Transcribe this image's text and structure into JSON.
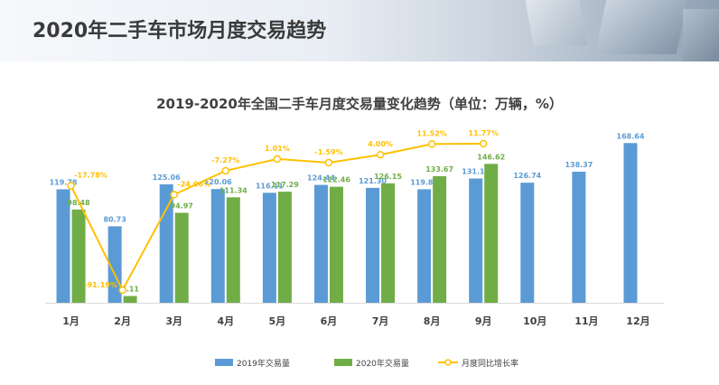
{
  "page": {
    "title": "2020年二手车市场月度交易趋势"
  },
  "colors": {
    "series2019": "#5b9bd5",
    "series2020": "#70ad47",
    "growth": "#ffc000",
    "label2019": "#5b9bd5",
    "label2020": "#70ad47",
    "growthLabel": "#ffc000",
    "axis": "#d9d9d9",
    "tick": "#404040"
  },
  "chart_data": {
    "type": "bar",
    "title": "2019-2020年全国二手车月度交易量变化趋势（单位：万辆，%）",
    "categories": [
      "1月",
      "2月",
      "3月",
      "4月",
      "5月",
      "6月",
      "7月",
      "8月",
      "9月",
      "10月",
      "11月",
      "12月"
    ],
    "series": [
      {
        "name": "2019年交易量",
        "type": "bar",
        "values": [
          119.78,
          80.73,
          125.06,
          120.06,
          116.11,
          124.44,
          121.3,
          119.86,
          131.18,
          126.74,
          138.37,
          168.64
        ],
        "labels": [
          "119.78",
          "80.73",
          "125.06",
          "120.06",
          "116.11",
          "124.44",
          "121.30",
          "119.86",
          "131.18",
          "126.74",
          "138.37",
          "168.64"
        ]
      },
      {
        "name": "2020年交易量",
        "type": "bar",
        "values": [
          98.48,
          7.11,
          94.97,
          111.34,
          117.29,
          122.46,
          126.15,
          133.67,
          146.62,
          null,
          null,
          null
        ],
        "labels": [
          "98.48",
          "7.11",
          "94.97",
          "111.34",
          "117.29",
          "122.46",
          "126.15",
          "133.67",
          "146.62",
          "",
          "",
          ""
        ]
      },
      {
        "name": "月度同比增长率",
        "type": "line",
        "values": [
          -17.78,
          -91.19,
          -24.06,
          -7.27,
          1.01,
          -1.59,
          4.0,
          11.52,
          11.77,
          null,
          null,
          null
        ],
        "labels": [
          "-17.78%",
          "-91.19%",
          "-24.06%",
          "-7.27%",
          "1.01%",
          "-1.59%",
          "4.00%",
          "11.52%",
          "11.77%",
          "",
          "",
          ""
        ]
      }
    ],
    "legend_position": "bottom",
    "grid": false
  }
}
